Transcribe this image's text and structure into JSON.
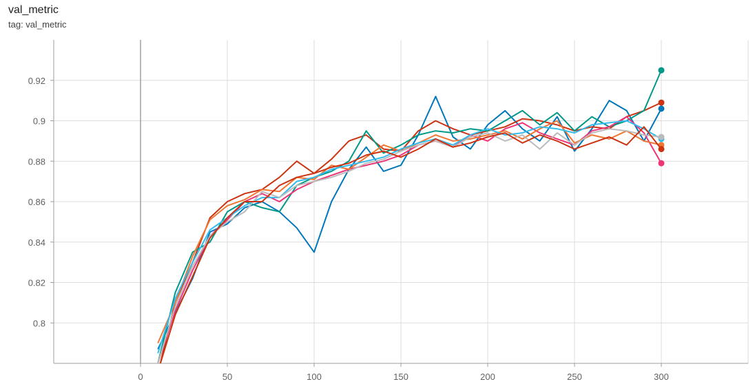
{
  "header": {
    "title": "val_metric",
    "tag": "tag: val_metric"
  },
  "chart_data": {
    "type": "line",
    "title": "val_metric",
    "subtitle": "tag: val_metric",
    "xlabel": "",
    "ylabel": "",
    "xlim": [
      -50,
      350
    ],
    "ylim": [
      0.78,
      0.94
    ],
    "x_ticks": [
      0,
      50,
      100,
      150,
      200,
      250,
      300
    ],
    "y_ticks": [
      0.8,
      0.82,
      0.84,
      0.86,
      0.88,
      0.9,
      0.92
    ],
    "x_tick_labels": [
      "0",
      "50",
      "100",
      "150",
      "200",
      "250",
      "300"
    ],
    "y_tick_labels": [
      "0.8",
      "0.82",
      "0.84",
      "0.86",
      "0.88",
      "0.9",
      "0.92"
    ],
    "grid": true,
    "legend": "none",
    "x": [
      10,
      20,
      30,
      40,
      50,
      60,
      70,
      80,
      90,
      100,
      110,
      120,
      130,
      140,
      150,
      160,
      170,
      180,
      190,
      200,
      210,
      220,
      230,
      240,
      250,
      260,
      270,
      280,
      290,
      300
    ],
    "series": [
      {
        "color": "#0077bb",
        "values": [
          0.787,
          0.805,
          0.822,
          0.845,
          0.849,
          0.857,
          0.86,
          0.855,
          0.847,
          0.835,
          0.86,
          0.876,
          0.887,
          0.875,
          0.878,
          0.893,
          0.912,
          0.892,
          0.886,
          0.898,
          0.905,
          0.896,
          0.89,
          0.902,
          0.885,
          0.896,
          0.91,
          0.905,
          0.89,
          0.906
        ]
      },
      {
        "color": "#cc3311",
        "values": [
          0.775,
          0.81,
          0.83,
          0.852,
          0.86,
          0.864,
          0.866,
          0.872,
          0.88,
          0.874,
          0.881,
          0.89,
          0.893,
          0.886,
          0.885,
          0.895,
          0.9,
          0.896,
          0.893,
          0.895,
          0.897,
          0.901,
          0.9,
          0.898,
          0.895,
          0.897,
          0.896,
          0.902,
          0.905,
          0.909
        ]
      },
      {
        "color": "#009988",
        "values": [
          0.78,
          0.815,
          0.835,
          0.84,
          0.855,
          0.86,
          0.857,
          0.855,
          0.868,
          0.872,
          0.875,
          0.88,
          0.895,
          0.884,
          0.888,
          0.893,
          0.895,
          0.894,
          0.896,
          0.895,
          0.9,
          0.905,
          0.898,
          0.904,
          0.895,
          0.902,
          0.897,
          0.9,
          0.905,
          0.925
        ]
      },
      {
        "color": "#ee3377",
        "values": [
          0.78,
          0.806,
          0.826,
          0.843,
          0.851,
          0.86,
          0.864,
          0.86,
          0.866,
          0.87,
          0.873,
          0.876,
          0.878,
          0.88,
          0.883,
          0.888,
          0.89,
          0.887,
          0.893,
          0.89,
          0.896,
          0.899,
          0.894,
          0.891,
          0.888,
          0.895,
          0.897,
          0.902,
          0.894,
          0.879
        ]
      },
      {
        "color": "#ee7733",
        "values": [
          0.79,
          0.81,
          0.833,
          0.851,
          0.858,
          0.861,
          0.866,
          0.865,
          0.872,
          0.871,
          0.878,
          0.876,
          0.882,
          0.888,
          0.885,
          0.889,
          0.893,
          0.89,
          0.891,
          0.893,
          0.895,
          0.891,
          0.896,
          0.9,
          0.889,
          0.893,
          0.891,
          0.895,
          0.89,
          0.888
        ]
      },
      {
        "color": "#33bbee",
        "values": [
          0.785,
          0.812,
          0.83,
          0.846,
          0.852,
          0.858,
          0.862,
          0.862,
          0.87,
          0.872,
          0.876,
          0.878,
          0.88,
          0.882,
          0.886,
          0.889,
          0.891,
          0.888,
          0.893,
          0.896,
          0.893,
          0.894,
          0.897,
          0.896,
          0.894,
          0.898,
          0.899,
          0.9,
          0.896,
          0.891
        ]
      },
      {
        "color": "#bbbbbb",
        "values": [
          0.78,
          0.808,
          0.828,
          0.843,
          0.85,
          0.855,
          0.865,
          0.862,
          0.868,
          0.87,
          0.872,
          0.875,
          0.879,
          0.881,
          0.885,
          0.888,
          0.89,
          0.887,
          0.892,
          0.894,
          0.89,
          0.893,
          0.886,
          0.894,
          0.888,
          0.894,
          0.896,
          0.895,
          0.893,
          0.892
        ]
      },
      {
        "color": "#cc3311",
        "values": [
          0.776,
          0.804,
          0.823,
          0.842,
          0.852,
          0.86,
          0.86,
          0.868,
          0.872,
          0.874,
          0.877,
          0.879,
          0.883,
          0.885,
          0.882,
          0.886,
          0.891,
          0.887,
          0.889,
          0.892,
          0.894,
          0.889,
          0.893,
          0.89,
          0.886,
          0.889,
          0.892,
          0.888,
          0.897,
          0.886
        ]
      }
    ]
  }
}
